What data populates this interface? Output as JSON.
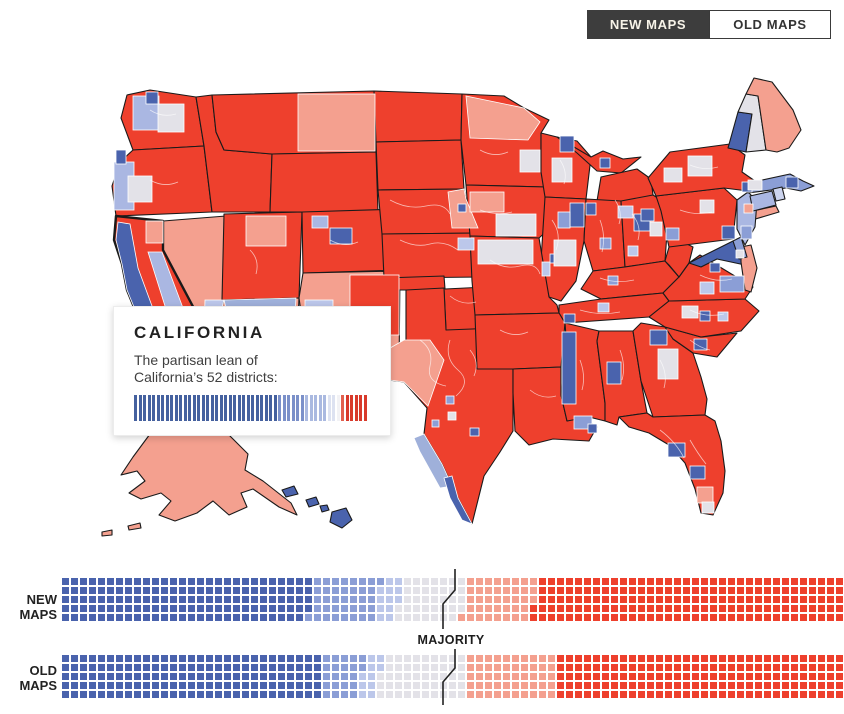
{
  "toggle": {
    "new_label": "NEW MAPS",
    "old_label": "OLD MAPS",
    "selected": "NEW MAPS"
  },
  "map": {
    "description": "U.S. congressional districts shaded by partisan lean",
    "selected_state": "California",
    "active_view": "NEW MAPS"
  },
  "tooltip": {
    "title": "CALIFORNIA",
    "body_line1": "The partisan lean of",
    "body_line2": "California’s 52 districts:"
  },
  "strips": {
    "majority_label": "MAJORITY",
    "new": {
      "label_line1": "NEW",
      "label_line2": "MAPS"
    },
    "old": {
      "label_line1": "OLD",
      "label_line2": "MAPS"
    }
  },
  "palette": {
    "strong_r": "#ee402d",
    "lean_r": "#f4a08f",
    "even": "#e3e2e8",
    "tilt_d": "#bcc7ea",
    "lean_d": "#8b9ed6",
    "strong_d": "#4a63ad",
    "toggle_dark": "#3d3d3d",
    "toggle_text": "#f7f3e8",
    "ink": "#222222",
    "state_border": "#1a1a1a",
    "district_border": "#ffffff"
  },
  "chart_data": [
    {
      "type": "bar",
      "name": "california-district-lean-strip",
      "title": "The partisan lean of California's 52 districts",
      "total_bars": 52,
      "order": "most_democratic_to_most_republican",
      "segments": [
        {
          "color": "#45619f",
          "count": 32
        },
        {
          "color": "#7b90c9",
          "count": 6
        },
        {
          "color": "#aab9e0",
          "count": 5
        },
        {
          "color": "#dde2f1",
          "count": 2
        },
        {
          "color": "#f2f2f5",
          "count": 1
        },
        {
          "color": "#e2604f",
          "count": 1
        },
        {
          "color": "#d83a2b",
          "count": 5
        }
      ]
    },
    {
      "type": "waffle",
      "name": "new-maps-seat-distribution",
      "label": "NEW MAPS",
      "rows": 5,
      "total": 435,
      "majority_at": 218,
      "order": "most_democratic_to_most_republican",
      "segments": [
        {
          "label": "Strong D",
          "color": "#4a63ad",
          "count": 139
        },
        {
          "label": "Lean D",
          "color": "#8b9ed6",
          "count": 37
        },
        {
          "label": "Tilt D",
          "color": "#bcc7ea",
          "count": 12
        },
        {
          "label": "Highly competitive",
          "color": "#e3e2e8",
          "count": 36
        },
        {
          "label": "Lean R",
          "color": "#f4a08f",
          "count": 39
        },
        {
          "label": "Strong R",
          "color": "#ee402d",
          "count": 172
        }
      ]
    },
    {
      "type": "waffle",
      "name": "old-maps-seat-distribution",
      "label": "OLD MAPS",
      "rows": 5,
      "total": 435,
      "majority_at": 218,
      "order": "most_democratic_to_most_republican",
      "segments": [
        {
          "label": "Strong D",
          "color": "#4a63ad",
          "count": 145
        },
        {
          "label": "Lean D",
          "color": "#8b9ed6",
          "count": 22
        },
        {
          "label": "Tilt D",
          "color": "#bcc7ea",
          "count": 10
        },
        {
          "label": "Highly competitive",
          "color": "#e3e2e8",
          "count": 48
        },
        {
          "label": "Lean R",
          "color": "#f4a08f",
          "count": 50
        },
        {
          "label": "Strong R",
          "color": "#ee402d",
          "count": 160
        }
      ]
    }
  ]
}
